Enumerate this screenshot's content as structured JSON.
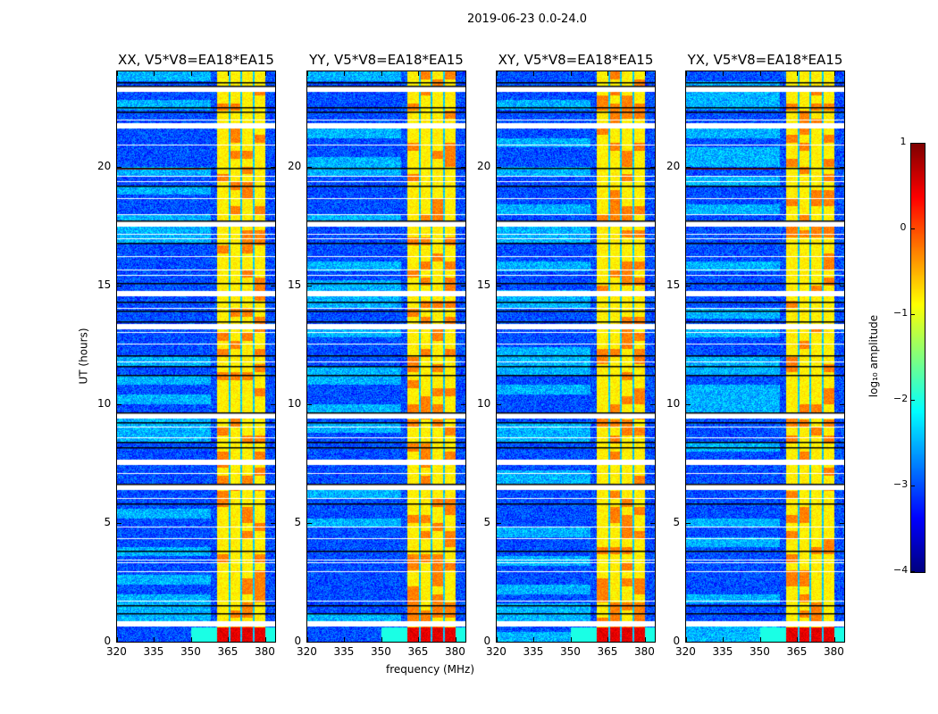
{
  "chart_data": {
    "type": "heatmap",
    "suptitle": "2019-06-23 0.0-24.0",
    "panels": [
      {
        "title": "XX, V5*V8=EA18*EA15",
        "low_freq_streak_hr": 19.9
      },
      {
        "title": "YY, V5*V8=EA18*EA15",
        "low_freq_streak_hr": null
      },
      {
        "title": "XY, V5*V8=EA18*EA15",
        "low_freq_streak_hr": null
      },
      {
        "title": "YX, V5*V8=EA18*EA15",
        "low_freq_streak_hr": 19.9
      }
    ],
    "xlabel": "frequency (MHz)",
    "ylabel": "UT (hours)",
    "xlim": [
      320,
      384
    ],
    "ylim": [
      0,
      24
    ],
    "xticks": [
      "320",
      "335",
      "350",
      "365",
      "380"
    ],
    "yticks": [
      "0",
      "5",
      "10",
      "15",
      "20"
    ],
    "colormap": "jet",
    "colorbar": {
      "label": "log₁₀ amplitude",
      "vmin": -4,
      "vmax": 1,
      "ticks": [
        "1",
        "0",
        "−1",
        "−2",
        "−3",
        "−4"
      ]
    },
    "background_log_amplitude": -3.0,
    "bright_band": {
      "freq_start_mhz": 360.5,
      "freq_end_mhz": 380,
      "log_amplitude": -0.8
    },
    "band_dividers_mhz": [
      365.5,
      370.2,
      375.3
    ],
    "strong_rfi_hours": [
      0.0,
      0.6
    ],
    "flagged_gaps_hr": [
      23.24,
      21.7,
      17.57,
      14.64,
      13.26,
      9.5,
      7.55,
      6.5,
      0.75
    ],
    "flagged_thin_rows_hr": [
      21.97,
      20.92,
      19.6,
      19.38,
      18.66,
      17.99,
      17.16,
      16.97,
      16.22,
      15.66,
      15.43,
      14.04,
      13.03,
      12.54,
      11.79,
      9.05,
      8.6,
      7.1,
      6.05,
      4.84,
      4.36,
      3.45,
      3.34,
      2.97,
      1.73
    ],
    "zero_rows_hr": [
      23.55,
      23.39,
      22.49,
      22.31,
      19.94,
      19.19,
      17.72,
      16.79,
      15.1,
      14.31,
      13.93,
      13.48,
      12.05,
      11.6,
      11.23,
      9.65,
      9.24,
      8.41,
      8.19,
      6.65,
      5.82,
      3.83,
      1.54,
      1.2
    ]
  }
}
